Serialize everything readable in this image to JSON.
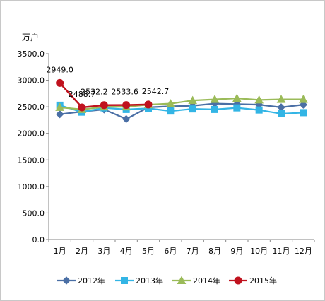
{
  "chart_data": {
    "type": "line",
    "title": "",
    "ylabel": "万户",
    "xlabel": "",
    "ylim": [
      0,
      3500
    ],
    "ytick_step": 500,
    "ytick_labels": [
      "0.0",
      "500.0",
      "1000.0",
      "1500.0",
      "2000.0",
      "2500.0",
      "3000.0",
      "3500.0"
    ],
    "grid": false,
    "legend": "bottom",
    "categories": [
      "1月",
      "2月",
      "3月",
      "4月",
      "5月",
      "6月",
      "7月",
      "8月",
      "9月",
      "10月",
      "11月",
      "12月"
    ],
    "series": [
      {
        "name": "2012年",
        "color": "#4a6fa5",
        "marker": "diamond",
        "values": [
          2360,
          2410,
          2450,
          2270,
          2490,
          2510,
          2520,
          2560,
          2550,
          2540,
          2490,
          2540
        ]
      },
      {
        "name": "2013年",
        "color": "#33b5e5",
        "marker": "square",
        "values": [
          2530,
          2400,
          2480,
          2450,
          2470,
          2420,
          2460,
          2450,
          2480,
          2440,
          2370,
          2390
        ]
      },
      {
        "name": "2014年",
        "color": "#9bbb59",
        "marker": "triangle",
        "values": [
          2490,
          2450,
          2500,
          2500,
          2540,
          2560,
          2620,
          2640,
          2660,
          2630,
          2640,
          2640
        ]
      },
      {
        "name": "2015年",
        "color": "#c0121e",
        "marker": "circle",
        "values": [
          2949.0,
          2488.7,
          2532.2,
          2533.6,
          2542.7,
          null,
          null,
          null,
          null,
          null,
          null,
          null
        ],
        "labels": [
          "2949.0",
          "2488.7",
          "2532.2",
          "2533.6",
          "2542.7"
        ]
      }
    ]
  }
}
